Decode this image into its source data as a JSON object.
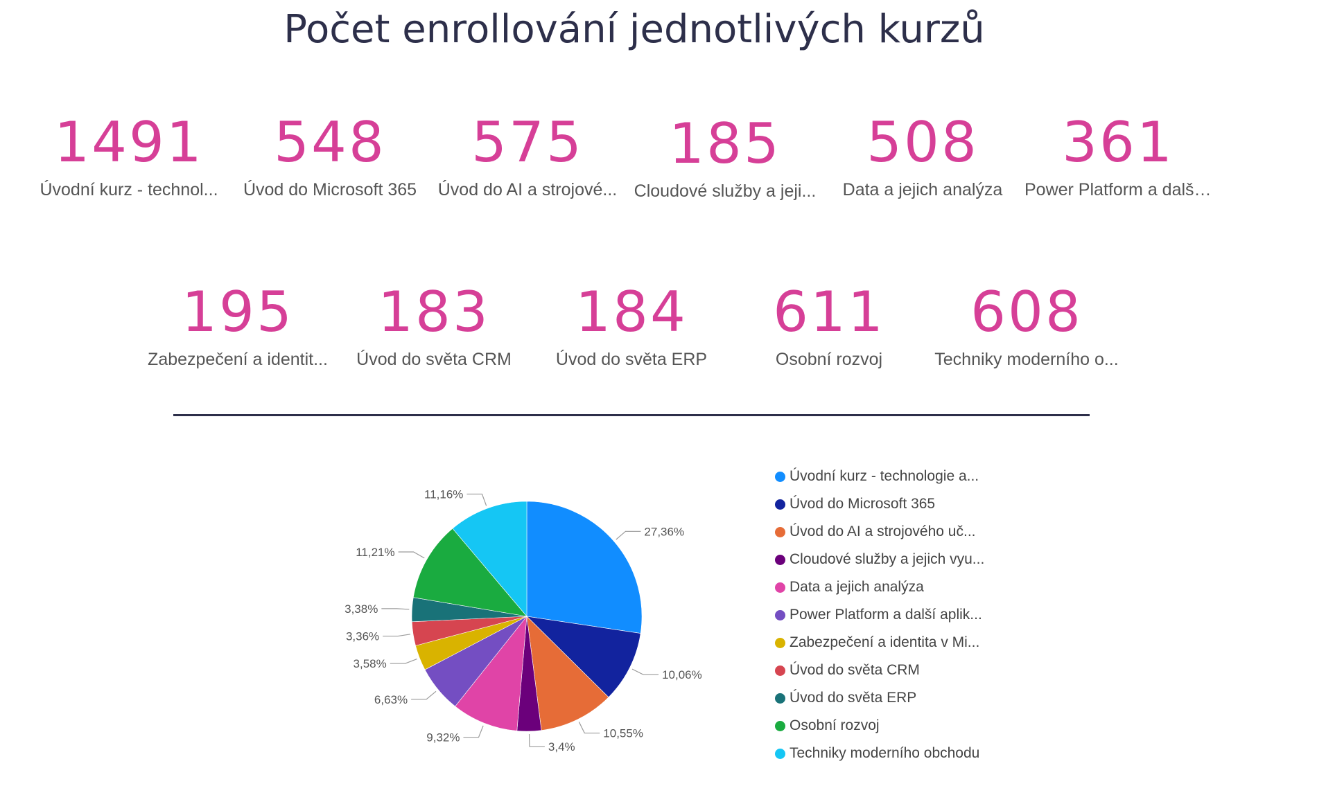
{
  "title": "Počet enrollování jednotlivých kurzů",
  "cards": [
    {
      "value": "1491",
      "label": "Úvodní kurz - technol..."
    },
    {
      "value": "548",
      "label": "Úvod do Microsoft 365"
    },
    {
      "value": "575",
      "label": "Úvod do AI a strojové..."
    },
    {
      "value": "185",
      "label": "Cloudové služby a jeji..."
    },
    {
      "value": "508",
      "label": "Data a jejich analýza"
    },
    {
      "value": "361",
      "label": "Power Platform a další..."
    },
    {
      "value": "195",
      "label": "Zabezpečení a identit..."
    },
    {
      "value": "183",
      "label": "Úvod do světa CRM"
    },
    {
      "value": "184",
      "label": "Úvod do světa ERP"
    },
    {
      "value": "611",
      "label": "Osobní rozvoj"
    },
    {
      "value": "608",
      "label": "Techniky moderního o..."
    }
  ],
  "chart_data": {
    "type": "pie",
    "title": "",
    "slices": [
      {
        "label": "Úvodní kurz - technologie a...",
        "value": 1491,
        "pct_label": "27,36%",
        "color": "#118dff"
      },
      {
        "label": "Úvod do Microsoft 365",
        "value": 548,
        "pct_label": "10,06%",
        "color": "#12239e"
      },
      {
        "label": "Úvod do AI a strojového uč...",
        "value": 575,
        "pct_label": "10,55%",
        "color": "#e66c37"
      },
      {
        "label": "Cloudové služby a jejich vyu...",
        "value": 185,
        "pct_label": "3,4%",
        "color": "#6b007b"
      },
      {
        "label": "Data a jejich analýza",
        "value": 508,
        "pct_label": "9,32%",
        "color": "#e044a7"
      },
      {
        "label": "Power Platform a další aplik...",
        "value": 361,
        "pct_label": "6,63%",
        "color": "#744ec2"
      },
      {
        "label": "Zabezpečení a identita v Mi...",
        "value": 195,
        "pct_label": "3,58%",
        "color": "#d9b300"
      },
      {
        "label": "Úvod do světa CRM",
        "value": 183,
        "pct_label": "3,36%",
        "color": "#d64550"
      },
      {
        "label": "Úvod do světa ERP",
        "value": 184,
        "pct_label": "3,38%",
        "color": "#197278"
      },
      {
        "label": "Osobní rozvoj",
        "value": 611,
        "pct_label": "11,21%",
        "color": "#1aab40"
      },
      {
        "label": "Techniky moderního obchodu",
        "value": 608,
        "pct_label": "11,16%",
        "color": "#15c6f4"
      }
    ],
    "legend_position": "right"
  }
}
